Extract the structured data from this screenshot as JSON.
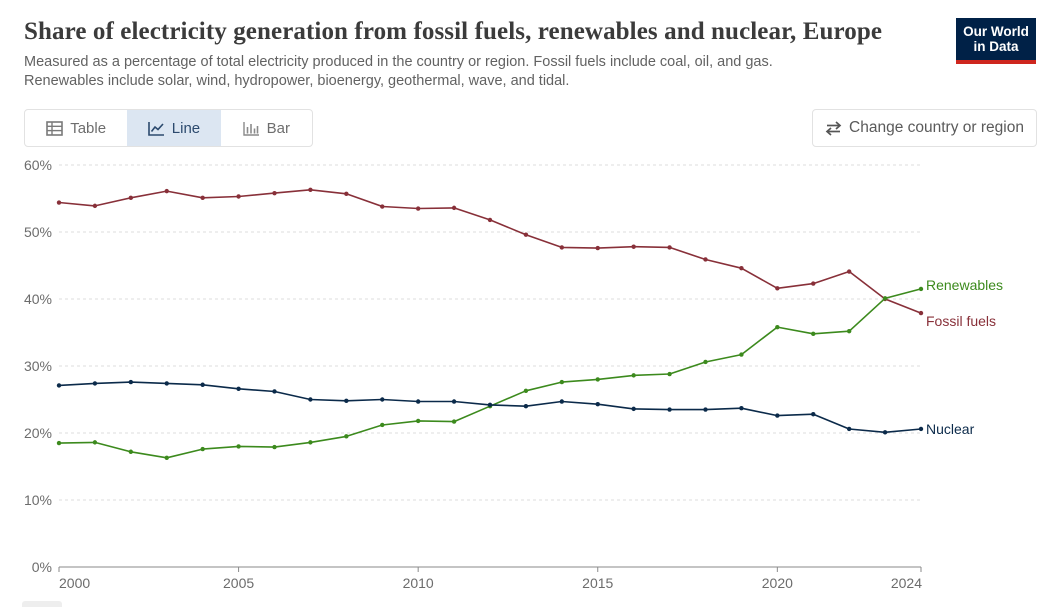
{
  "header": {
    "title": "Share of electricity generation from fossil fuels, renewables and nuclear, Europe",
    "subtitle_line1": "Measured as a percentage of total electricity produced in the country or region. Fossil fuels include coal, oil, and gas.",
    "subtitle_line2": "Renewables include solar, wind, hydropower, bioenergy, geothermal, wave, and tidal.",
    "logo_line1": "Our World",
    "logo_line2": "in Data"
  },
  "tabs": [
    {
      "label": "Table",
      "icon": "table-icon",
      "active": false
    },
    {
      "label": "Line",
      "icon": "line-chart-icon",
      "active": true
    },
    {
      "label": "Bar",
      "icon": "bar-chart-icon",
      "active": false
    }
  ],
  "change_region": {
    "label": "Change country or region",
    "icon": "swap-arrows-icon"
  },
  "colors": {
    "fossil": "#883039",
    "renewables": "#3c8a1d",
    "nuclear": "#0b2a4a",
    "grid": "#dddddd",
    "logo_bg": "#002147",
    "logo_accent": "#ce261e"
  },
  "chart_data": {
    "type": "line",
    "title": "Share of electricity generation from fossil fuels, renewables and nuclear, Europe",
    "xlabel": "",
    "ylabel": "",
    "ylim": [
      0,
      60
    ],
    "xlim": [
      2000,
      2024
    ],
    "y_ticks": [
      "0%",
      "10%",
      "20%",
      "30%",
      "40%",
      "50%",
      "60%"
    ],
    "x_ticks": [
      "2000",
      "2005",
      "2010",
      "2015",
      "2020",
      "2024"
    ],
    "grid": true,
    "legend": "inline-right",
    "x": [
      2000,
      2001,
      2002,
      2003,
      2004,
      2005,
      2006,
      2007,
      2008,
      2009,
      2010,
      2011,
      2012,
      2013,
      2014,
      2015,
      2016,
      2017,
      2018,
      2019,
      2020,
      2021,
      2022,
      2023,
      2024
    ],
    "series": [
      {
        "name": "Fossil fuels",
        "key": "fossil",
        "values": [
          54.4,
          53.9,
          55.1,
          56.1,
          55.1,
          55.3,
          55.8,
          56.3,
          55.7,
          53.8,
          53.5,
          53.6,
          51.8,
          49.6,
          47.7,
          47.6,
          47.8,
          47.7,
          45.9,
          44.6,
          41.6,
          42.3,
          44.1,
          40.0,
          37.9
        ]
      },
      {
        "name": "Renewables",
        "key": "renewables",
        "values": [
          18.5,
          18.6,
          17.2,
          16.3,
          17.6,
          18.0,
          17.9,
          18.6,
          19.5,
          21.2,
          21.8,
          21.7,
          24.0,
          26.3,
          27.6,
          28.0,
          28.6,
          28.8,
          30.6,
          31.7,
          35.8,
          34.8,
          35.2,
          40.1,
          41.5
        ]
      },
      {
        "name": "Nuclear",
        "key": "nuclear",
        "values": [
          27.1,
          27.4,
          27.6,
          27.4,
          27.2,
          26.6,
          26.2,
          25.0,
          24.8,
          25.0,
          24.7,
          24.7,
          24.2,
          24.0,
          24.7,
          24.3,
          23.6,
          23.5,
          23.5,
          23.7,
          22.6,
          22.8,
          20.6,
          20.1,
          20.6
        ]
      }
    ]
  }
}
